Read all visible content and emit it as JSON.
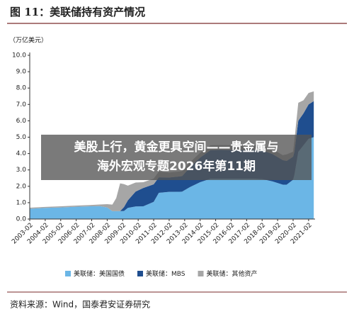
{
  "chart_data": {
    "type": "stacked_area",
    "title": "图 11：美联储持有资产情况",
    "y_label": "（万亿美元）",
    "x": [
      "2003-02",
      "2004-02",
      "2005-02",
      "2006-02",
      "2007-02",
      "2007-08",
      "2008-02",
      "2008-06",
      "2008-09",
      "2008-12",
      "2009-03",
      "2009-06",
      "2009-12",
      "2010-06",
      "2011-02",
      "2011-06",
      "2012-02",
      "2012-12",
      "2013-06",
      "2014-02",
      "2014-10",
      "2015-06",
      "2016-06",
      "2017-06",
      "2018-02",
      "2018-10",
      "2019-06",
      "2019-09",
      "2020-02",
      "2020-03",
      "2020-06",
      "2020-10",
      "2021-02",
      "2021-06"
    ],
    "series": [
      {
        "name": "美联储：美国国债",
        "color": "#6bb6e6",
        "values": [
          0.63,
          0.68,
          0.71,
          0.75,
          0.78,
          0.79,
          0.71,
          0.48,
          0.48,
          0.48,
          0.49,
          0.68,
          0.77,
          0.78,
          1.05,
          1.6,
          1.66,
          1.67,
          1.95,
          2.25,
          2.46,
          2.46,
          2.46,
          2.46,
          2.44,
          2.3,
          2.1,
          2.1,
          2.4,
          2.7,
          4.1,
          4.5,
          4.9,
          5.0
        ]
      },
      {
        "name": "美联储：MBS",
        "color": "#1f4e8f",
        "values": [
          0,
          0,
          0,
          0,
          0,
          0,
          0,
          0,
          0,
          0,
          0.24,
          0.46,
          0.91,
          1.12,
          1.07,
          0.95,
          0.88,
          0.95,
          1.2,
          1.5,
          1.75,
          1.76,
          1.75,
          1.77,
          1.76,
          1.67,
          1.5,
          1.45,
          1.41,
          1.4,
          1.9,
          1.95,
          2.1,
          2.2
        ]
      },
      {
        "name": "美联储：其他资产",
        "color": "#a6a6a6",
        "values": [
          0.06,
          0.06,
          0.07,
          0.07,
          0.08,
          0.1,
          0.2,
          0.4,
          0.8,
          1.7,
          1.4,
          0.9,
          0.55,
          0.35,
          0.35,
          0.35,
          0.3,
          0.3,
          0.3,
          0.3,
          0.3,
          0.3,
          0.3,
          0.3,
          0.3,
          0.3,
          0.3,
          0.4,
          0.3,
          0.7,
          1.1,
          0.8,
          0.7,
          0.6
        ]
      }
    ],
    "xlim": [
      "2003-02",
      "2021-07"
    ],
    "xticks": [
      "2003-02",
      "2004-02",
      "2005-02",
      "2006-02",
      "2007-02",
      "2008-02",
      "2009-02",
      "2010-02",
      "2011-02",
      "2012-02",
      "2013-02",
      "2014-02",
      "2015-02",
      "2016-02",
      "2017-02",
      "2018-02",
      "2019-02",
      "2020-02",
      "2021-02"
    ],
    "ylim": [
      0,
      10
    ],
    "yticks": [
      {
        "value": 0,
        "label": "0.0"
      },
      {
        "value": 1,
        "label": "1.0"
      },
      {
        "value": 2,
        "label": "2.0"
      },
      {
        "value": 3,
        "label": "3.0"
      },
      {
        "value": 4,
        "label": "4.0"
      },
      {
        "value": 5,
        "label": "5.0"
      },
      {
        "value": 6,
        "label": "6.0"
      },
      {
        "value": 7,
        "label": "7.0"
      },
      {
        "value": 8,
        "label": "8.0"
      },
      {
        "value": 9,
        "label": "9.0"
      },
      {
        "value": 10,
        "label": "10.0"
      }
    ],
    "source": "资料来源：Wind，国泰君安证券研究"
  },
  "overlay": {
    "lines": [
      "美股上行，黄金更具空间——贵金属与",
      "海外宏观专题2026年第11期"
    ]
  }
}
